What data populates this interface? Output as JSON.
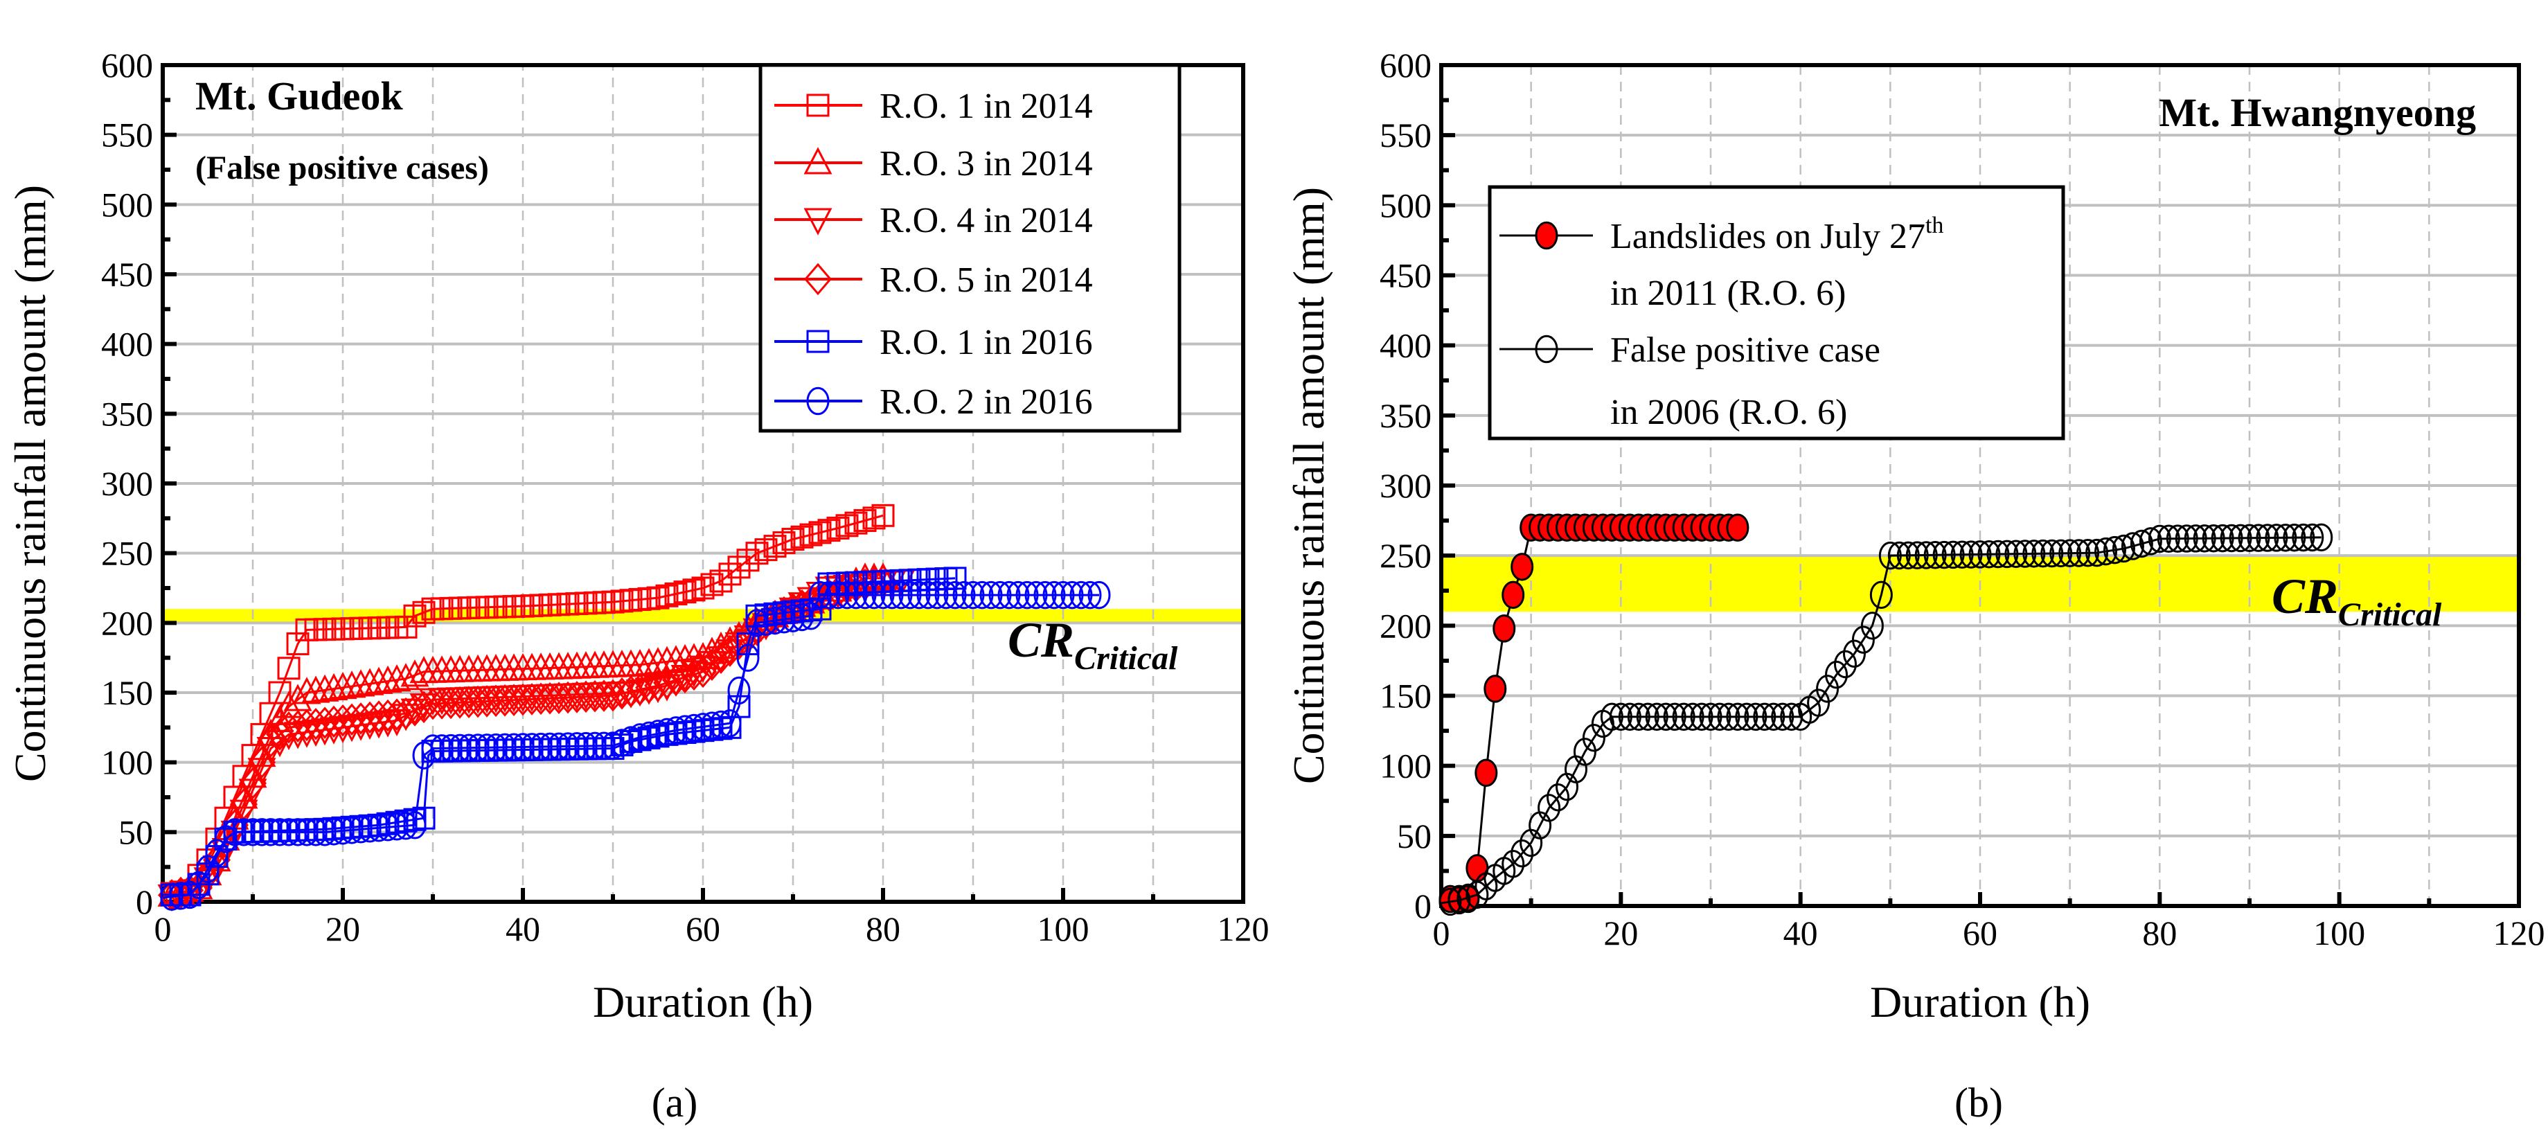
{
  "chart_data": [
    {
      "type": "line",
      "panel": "(a)",
      "title": "Mt. Gudeok",
      "subtitle": "(False positive cases)",
      "xlabel": "Duration (h)",
      "ylabel": "Continuous rainfall amount (mm)",
      "xlim": [
        0,
        120
      ],
      "ylim": [
        0,
        600
      ],
      "xticks": [
        0,
        20,
        40,
        60,
        80,
        100,
        120
      ],
      "yticks": [
        0,
        50,
        100,
        150,
        200,
        250,
        300,
        350,
        400,
        450,
        500,
        550,
        600
      ],
      "grid": true,
      "legend_position": "top-right",
      "band": {
        "label": "CR",
        "label_sub": "Critical",
        "range": [
          200,
          210
        ],
        "color": "#ffff00"
      },
      "series": [
        {
          "name": "R.O. 1 in 2014",
          "color": "#ff0000",
          "marker": "square",
          "points": [
            [
              0,
              5
            ],
            [
              3,
              8
            ],
            [
              5,
              30
            ],
            [
              7,
              60
            ],
            [
              9,
              90
            ],
            [
              11,
              120
            ],
            [
              13,
              150
            ],
            [
              15,
              185
            ],
            [
              16,
              195
            ],
            [
              27,
              197
            ],
            [
              28,
              205
            ],
            [
              30,
              210
            ],
            [
              40,
              212
            ],
            [
              50,
              215
            ],
            [
              55,
              218
            ],
            [
              60,
              225
            ],
            [
              62,
              230
            ],
            [
              64,
              240
            ],
            [
              66,
              250
            ],
            [
              70,
              260
            ],
            [
              75,
              268
            ],
            [
              80,
              277
            ]
          ]
        },
        {
          "name": "R.O. 3 in 2014",
          "color": "#ff0000",
          "marker": "triangle-up",
          "points": [
            [
              0,
              3
            ],
            [
              4,
              10
            ],
            [
              6,
              30
            ],
            [
              8,
              60
            ],
            [
              10,
              90
            ],
            [
              12,
              120
            ],
            [
              14,
              140
            ],
            [
              16,
              150
            ],
            [
              27,
              160
            ],
            [
              29,
              165
            ],
            [
              45,
              168
            ],
            [
              53,
              170
            ],
            [
              60,
              175
            ],
            [
              64,
              190
            ],
            [
              66,
              200
            ],
            [
              72,
              215
            ],
            [
              78,
              232
            ],
            [
              80,
              232
            ]
          ]
        },
        {
          "name": "R.O. 4 in 2014",
          "color": "#ff0000",
          "marker": "triangle-down",
          "points": [
            [
              0,
              3
            ],
            [
              4,
              8
            ],
            [
              6,
              25
            ],
            [
              8,
              50
            ],
            [
              10,
              80
            ],
            [
              12,
              110
            ],
            [
              14,
              120
            ],
            [
              20,
              125
            ],
            [
              26,
              130
            ],
            [
              30,
              145
            ],
            [
              52,
              150
            ],
            [
              56,
              155
            ],
            [
              62,
              175
            ],
            [
              66,
              195
            ],
            [
              70,
              210
            ],
            [
              74,
              225
            ],
            [
              82,
              230
            ]
          ]
        },
        {
          "name": "R.O. 5 in 2014",
          "color": "#ff0000",
          "marker": "diamond",
          "points": [
            [
              0,
              3
            ],
            [
              4,
              10
            ],
            [
              6,
              30
            ],
            [
              8,
              55
            ],
            [
              10,
              85
            ],
            [
              12,
              115
            ],
            [
              14,
              125
            ],
            [
              20,
              130
            ],
            [
              27,
              135
            ],
            [
              30,
              142
            ],
            [
              50,
              148
            ],
            [
              55,
              155
            ],
            [
              60,
              165
            ],
            [
              64,
              185
            ],
            [
              68,
              205
            ],
            [
              72,
              215
            ],
            [
              76,
              225
            ],
            [
              80,
              230
            ]
          ]
        },
        {
          "name": "R.O. 1 in 2016",
          "color": "#0000ff",
          "marker": "square",
          "points": [
            [
              0,
              5
            ],
            [
              3,
              5
            ],
            [
              5,
              20
            ],
            [
              7,
              45
            ],
            [
              8,
              50
            ],
            [
              18,
              52
            ],
            [
              24,
              55
            ],
            [
              29,
              60
            ],
            [
              29.5,
              105
            ],
            [
              30,
              108
            ],
            [
              50,
              110
            ],
            [
              52,
              115
            ],
            [
              56,
              120
            ],
            [
              63,
              125
            ],
            [
              64,
              140
            ],
            [
              65,
              185
            ],
            [
              66,
              205
            ],
            [
              70,
              208
            ],
            [
              73,
              210
            ],
            [
              74,
              228
            ],
            [
              88,
              232
            ]
          ]
        },
        {
          "name": "R.O. 2 in 2016",
          "color": "#0000ff",
          "marker": "circle",
          "points": [
            [
              0,
              3
            ],
            [
              3,
              5
            ],
            [
              4,
              12
            ],
            [
              6,
              35
            ],
            [
              7,
              45
            ],
            [
              8,
              50
            ],
            [
              18,
              50
            ],
            [
              28,
              55
            ],
            [
              29,
              105
            ],
            [
              30,
              110
            ],
            [
              50,
              112
            ],
            [
              53,
              118
            ],
            [
              57,
              123
            ],
            [
              63,
              128
            ],
            [
              65,
              175
            ],
            [
              66,
              200
            ],
            [
              72,
              205
            ],
            [
              73,
              220
            ],
            [
              104,
              220
            ]
          ]
        }
      ]
    },
    {
      "type": "line",
      "panel": "(b)",
      "title": "Mt. Hwangnyeong",
      "xlabel": "Duration (h)",
      "ylabel": "Continuous rainfall amount (mm)",
      "xlim": [
        0,
        120
      ],
      "ylim": [
        0,
        600
      ],
      "xticks": [
        0,
        20,
        40,
        60,
        80,
        100,
        120
      ],
      "yticks": [
        0,
        50,
        100,
        150,
        200,
        250,
        300,
        350,
        400,
        450,
        500,
        550,
        600
      ],
      "grid": true,
      "legend_position": "upper-left",
      "band": {
        "label": "CR",
        "label_sub": "Critical",
        "range": [
          210,
          250
        ],
        "color": "#ffff00"
      },
      "series": [
        {
          "name": "Landslides on July 27th in 2011 (R.O. 6)",
          "legend_lines": [
            "Landslides on July 27",
            "th",
            "in 2011 (R.O. 6)"
          ],
          "color": "#000000",
          "fill": "#ff0000",
          "marker": "circle-filled",
          "points": [
            [
              0,
              5
            ],
            [
              3,
              5
            ],
            [
              4,
              27
            ],
            [
              5,
              95
            ],
            [
              6,
              155
            ],
            [
              7,
              198
            ],
            [
              8,
              222
            ],
            [
              9,
              242
            ],
            [
              10,
              270
            ],
            [
              33,
              270
            ],
            [
              33.5,
              272
            ]
          ]
        },
        {
          "name": "False positive case in 2006 (R.O. 6)",
          "legend_lines": [
            "False positive case",
            "",
            "in 2006 (R.O. 6)"
          ],
          "color": "#000000",
          "fill": "none",
          "marker": "circle",
          "points": [
            [
              0,
              2
            ],
            [
              2,
              4
            ],
            [
              4,
              8
            ],
            [
              6,
              20
            ],
            [
              8,
              30
            ],
            [
              10,
              45
            ],
            [
              12,
              70
            ],
            [
              14,
              85
            ],
            [
              16,
              110
            ],
            [
              18,
              130
            ],
            [
              19,
              135
            ],
            [
              40,
              135
            ],
            [
              42,
              145
            ],
            [
              44,
              165
            ],
            [
              46,
              180
            ],
            [
              48,
              200
            ],
            [
              49,
              222
            ],
            [
              50,
              250
            ],
            [
              73,
              252
            ],
            [
              76,
              255
            ],
            [
              80,
              262
            ],
            [
              98,
              263
            ]
          ]
        }
      ]
    }
  ]
}
